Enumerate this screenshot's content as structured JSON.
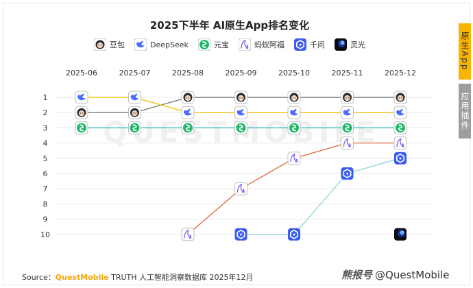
{
  "title": "2025下半年 AI原生App排名变化",
  "tabs": [
    {
      "label": "原生App",
      "active": true
    },
    {
      "label": "应用插件",
      "active": false
    }
  ],
  "source": {
    "prefix": "Source：",
    "brand": "QuestMobile",
    "rest": " TRUTH 人工智能洞察数据库 2025年12月"
  },
  "watermark": {
    "logo": "熊报号",
    "handle": "@QuestMobile"
  },
  "background_mark": "QUESTMOBILE",
  "chart_data": {
    "type": "line",
    "title": "2025下半年 AI原生App排名变化",
    "x": [
      "2025-06",
      "2025-07",
      "2025-08",
      "2025-09",
      "2025-10",
      "2025-11",
      "2025-12"
    ],
    "y_ticks": [
      1,
      2,
      3,
      4,
      5,
      6,
      7,
      8,
      9,
      10
    ],
    "y_inverted": true,
    "ylim": [
      1,
      10
    ],
    "grid": true,
    "legend_position": "top-center",
    "series": [
      {
        "name": "豆包",
        "icon": "doubao-icon",
        "color": "#7a7a7a",
        "values": [
          2,
          2,
          1,
          1,
          1,
          1,
          1
        ]
      },
      {
        "name": "DeepSeek",
        "icon": "deepseek-icon",
        "color": "#f2c10f",
        "values": [
          1,
          1,
          2,
          2,
          2,
          2,
          2
        ]
      },
      {
        "name": "元宝",
        "icon": "yuanbao-icon",
        "color": "#3bbcc9",
        "values": [
          3,
          3,
          3,
          3,
          3,
          3,
          3
        ]
      },
      {
        "name": "蚂蚁阿福",
        "icon": "mayi-afu-icon",
        "color": "#e2704a",
        "values": [
          null,
          null,
          10,
          7,
          5,
          4,
          4
        ]
      },
      {
        "name": "千问",
        "icon": "qianwen-icon",
        "color": "#93d8dc",
        "values": [
          null,
          null,
          null,
          10,
          10,
          6,
          5
        ]
      },
      {
        "name": "灵光",
        "icon": "lingguang-icon",
        "color": "#000000",
        "values": [
          null,
          null,
          null,
          null,
          null,
          null,
          10
        ]
      }
    ]
  }
}
